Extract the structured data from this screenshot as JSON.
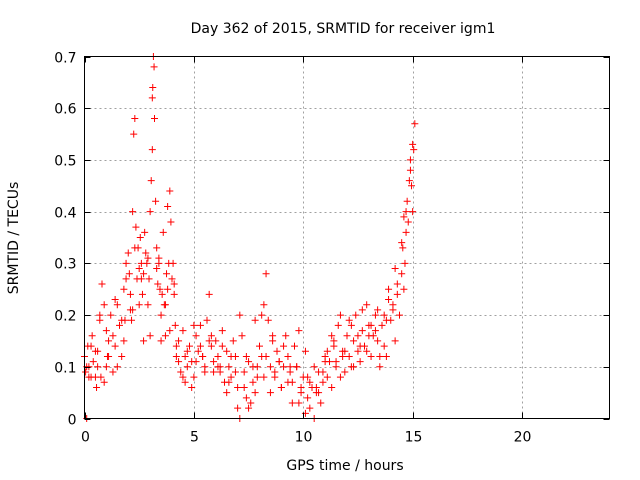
{
  "chart_data": {
    "type": "scatter",
    "title": "Day 362 of 2015, SRMTID for receiver igm1",
    "xlabel": "GPS time / hours",
    "ylabel": "SRMTID / TECUs",
    "xlim": [
      0,
      24
    ],
    "ylim": [
      0,
      0.7
    ],
    "xticks": [
      0,
      5,
      10,
      15,
      20
    ],
    "yticks": [
      0,
      0.1,
      0.2,
      0.3,
      0.4,
      0.5,
      0.6,
      0.7
    ],
    "xtick_labels": [
      "0",
      "5",
      "10",
      "15",
      "20"
    ],
    "ytick_labels": [
      "0",
      "0.1",
      "0.2",
      "0.3",
      "0.4",
      "0.5",
      "0.6",
      "0.7"
    ],
    "grid": true,
    "marker": "+",
    "color": "#ff0000",
    "series": [
      {
        "name": "SRMTID",
        "x": [
          0.0,
          0.05,
          0.1,
          0.15,
          0.2,
          0.3,
          0.35,
          0.4,
          0.5,
          0.55,
          0.6,
          0.7,
          0.75,
          0.8,
          0.9,
          1.0,
          1.05,
          1.1,
          1.2,
          1.3,
          1.4,
          1.5,
          1.6,
          1.7,
          1.8,
          1.85,
          1.9,
          2.0,
          2.05,
          2.1,
          2.15,
          2.2,
          2.25,
          2.3,
          2.35,
          2.4,
          2.45,
          2.5,
          2.55,
          2.6,
          2.65,
          2.7,
          2.75,
          2.8,
          2.85,
          2.9,
          2.95,
          3.0,
          3.05,
          3.1,
          3.12,
          3.15,
          3.18,
          3.2,
          3.25,
          3.3,
          3.35,
          3.4,
          3.45,
          3.5,
          3.55,
          3.6,
          3.65,
          3.7,
          3.75,
          3.8,
          3.85,
          3.9,
          3.95,
          4.0,
          4.05,
          4.1,
          4.15,
          4.2,
          4.3,
          4.4,
          4.5,
          4.6,
          4.7,
          4.8,
          4.9,
          5.0,
          5.1,
          5.2,
          5.3,
          5.4,
          5.5,
          5.6,
          5.7,
          5.8,
          5.9,
          6.0,
          6.1,
          6.2,
          6.3,
          6.4,
          6.5,
          6.6,
          6.7,
          6.8,
          6.9,
          7.0,
          7.1,
          7.2,
          7.3,
          7.4,
          7.5,
          7.6,
          7.7,
          7.8,
          7.9,
          8.0,
          8.1,
          8.2,
          8.3,
          8.4,
          8.5,
          8.6,
          8.7,
          8.8,
          8.9,
          9.0,
          9.1,
          9.2,
          9.3,
          9.4,
          9.5,
          9.6,
          9.7,
          9.8,
          9.9,
          10.0,
          10.1,
          10.2,
          10.3,
          10.4,
          10.5,
          10.6,
          10.7,
          10.8,
          10.9,
          11.0,
          11.1,
          11.2,
          11.3,
          11.4,
          11.5,
          11.6,
          11.7,
          11.8,
          11.9,
          12.0,
          12.1,
          12.2,
          12.3,
          12.4,
          12.5,
          12.6,
          12.7,
          12.8,
          12.9,
          13.0,
          13.1,
          13.2,
          13.3,
          13.4,
          13.5,
          13.6,
          13.7,
          13.8,
          13.9,
          14.0,
          14.1,
          14.2,
          14.3,
          14.4,
          14.5,
          14.55,
          14.6,
          14.65,
          14.7,
          14.75,
          14.8,
          14.85,
          14.9,
          14.95,
          15.0,
          15.05,
          15.1,
          0.1,
          0.3,
          0.5,
          0.7,
          0.9,
          1.1,
          1.3,
          1.5,
          1.7,
          1.9,
          2.1,
          2.3,
          2.5,
          2.7,
          2.9,
          3.1,
          3.3,
          3.5,
          3.7,
          3.9,
          4.1,
          4.3,
          4.5,
          4.7,
          4.9,
          5.1,
          5.3,
          5.5,
          5.7,
          5.9,
          6.1,
          6.3,
          6.5,
          6.7,
          6.9,
          7.1,
          7.3,
          7.5,
          7.7,
          7.9,
          8.1,
          8.3,
          8.5,
          8.7,
          8.9,
          9.1,
          9.3,
          9.5,
          9.7,
          9.9,
          10.1,
          10.3,
          10.5,
          10.7,
          10.9,
          11.1,
          11.3,
          11.5,
          11.7,
          11.9,
          12.1,
          12.3,
          12.5,
          12.7,
          12.9,
          13.1,
          13.3,
          13.5,
          13.7,
          13.9,
          14.1,
          14.3,
          14.5,
          14.7,
          14.9,
          0.2,
          0.6,
          1.0,
          1.4,
          1.8,
          2.2,
          2.6,
          3.0,
          3.4,
          3.8,
          4.2,
          4.6,
          5.0,
          5.4,
          5.8,
          6.2,
          6.6,
          7.0,
          7.4,
          7.8,
          8.2,
          8.6,
          9.0,
          9.4,
          9.8,
          10.2,
          10.6,
          11.0,
          11.4,
          11.8,
          12.2,
          12.6,
          13.0,
          13.4,
          13.8,
          14.2,
          14.6,
          15.0
        ],
        "y": [
          0.12,
          0.09,
          0.0,
          0.14,
          0.1,
          0.08,
          0.16,
          0.11,
          0.13,
          0.06,
          0.1,
          0.19,
          0.08,
          0.26,
          0.22,
          0.17,
          0.12,
          0.15,
          0.2,
          0.09,
          0.14,
          0.22,
          0.18,
          0.12,
          0.25,
          0.19,
          0.3,
          0.32,
          0.28,
          0.24,
          0.19,
          0.4,
          0.55,
          0.58,
          0.37,
          0.27,
          0.33,
          0.29,
          0.35,
          0.3,
          0.24,
          0.28,
          0.36,
          0.32,
          0.3,
          0.22,
          0.27,
          0.4,
          0.46,
          0.52,
          0.64,
          0.7,
          0.68,
          0.58,
          0.42,
          0.33,
          0.26,
          0.3,
          0.25,
          0.2,
          0.24,
          0.36,
          0.22,
          0.16,
          0.28,
          0.25,
          0.3,
          0.44,
          0.38,
          0.27,
          0.3,
          0.24,
          0.18,
          0.12,
          0.15,
          0.09,
          0.17,
          0.12,
          0.1,
          0.14,
          0.11,
          0.08,
          0.16,
          0.13,
          0.18,
          0.12,
          0.1,
          0.19,
          0.24,
          0.14,
          0.09,
          0.15,
          0.12,
          0.1,
          0.17,
          0.07,
          0.13,
          0.1,
          0.08,
          0.15,
          0.12,
          0.06,
          0.2,
          0.16,
          0.09,
          0.04,
          0.11,
          0.03,
          0.07,
          0.05,
          0.1,
          0.14,
          0.12,
          0.22,
          0.28,
          0.19,
          0.1,
          0.15,
          0.08,
          0.13,
          0.11,
          0.06,
          0.1,
          0.16,
          0.12,
          0.09,
          0.07,
          0.14,
          0.1,
          0.17,
          0.05,
          0.08,
          0.13,
          0.04,
          0.02,
          0.06,
          0.0,
          0.05,
          0.09,
          0.03,
          0.07,
          0.12,
          0.08,
          0.11,
          0.06,
          0.14,
          0.1,
          0.18,
          0.08,
          0.13,
          0.09,
          0.16,
          0.12,
          0.1,
          0.15,
          0.2,
          0.13,
          0.11,
          0.17,
          0.14,
          0.22,
          0.18,
          0.12,
          0.16,
          0.2,
          0.15,
          0.1,
          0.18,
          0.14,
          0.12,
          0.23,
          0.19,
          0.22,
          0.15,
          0.24,
          0.2,
          0.28,
          0.33,
          0.25,
          0.3,
          0.36,
          0.42,
          0.38,
          0.46,
          0.5,
          0.45,
          0.4,
          0.52,
          0.57,
          0.1,
          0.14,
          0.08,
          0.2,
          0.07,
          0.12,
          0.16,
          0.1,
          0.19,
          0.27,
          0.21,
          0.33,
          0.22,
          0.15,
          0.31,
          0.62,
          0.29,
          0.15,
          0.22,
          0.17,
          0.26,
          0.11,
          0.08,
          0.13,
          0.06,
          0.11,
          0.14,
          0.09,
          0.15,
          0.11,
          0.1,
          0.14,
          0.05,
          0.12,
          0.09,
          0.0,
          0.06,
          0.02,
          0.1,
          0.08,
          0.2,
          0.12,
          0.05,
          0.09,
          0.11,
          0.14,
          0.07,
          0.03,
          0.1,
          0.06,
          0.01,
          0.07,
          0.1,
          0.05,
          0.09,
          0.13,
          0.16,
          0.11,
          0.2,
          0.13,
          0.19,
          0.1,
          0.16,
          0.21,
          0.13,
          0.18,
          0.17,
          0.12,
          0.2,
          0.25,
          0.21,
          0.26,
          0.34,
          0.4,
          0.48,
          0.08,
          0.13,
          0.1,
          0.23,
          0.15,
          0.21,
          0.27,
          0.16,
          0.31,
          0.41,
          0.14,
          0.07,
          0.18,
          0.12,
          0.16,
          0.09,
          0.07,
          0.02,
          0.12,
          0.19,
          0.08,
          0.16,
          0.06,
          0.1,
          0.03,
          0.08,
          0.06,
          0.11,
          0.15,
          0.12,
          0.18,
          0.14,
          0.16,
          0.21,
          0.19,
          0.29,
          0.39,
          0.53
        ]
      }
    ]
  }
}
